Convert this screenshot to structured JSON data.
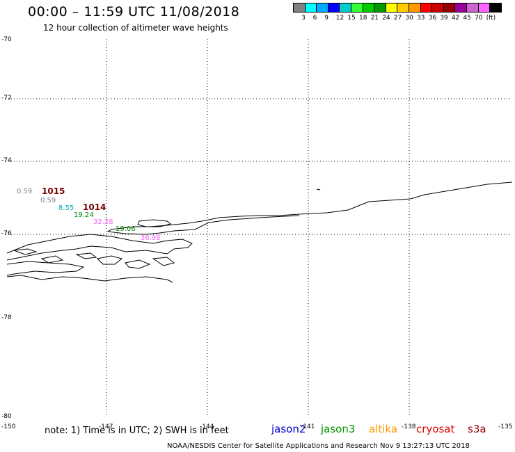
{
  "header": {
    "title": "00:00 – 11:59 UTC 11/08/2018",
    "subtitle": "12 hour collection of altimeter wave heights"
  },
  "colorbar": {
    "colors": [
      "#808080",
      "#00ffff",
      "#00aaff",
      "#0000ff",
      "#00cccc",
      "#33ff33",
      "#00cc00",
      "#009900",
      "#ffff00",
      "#ffcc00",
      "#ff9900",
      "#ff0000",
      "#cc0000",
      "#990000",
      "#990099",
      "#cc66cc",
      "#ff66ff",
      "#000000"
    ],
    "labels": [
      "3",
      "6",
      "9",
      "12",
      "15",
      "18",
      "21",
      "24",
      "27",
      "30",
      "33",
      "36",
      "39",
      "42",
      "45",
      "70",
      "(ft)"
    ]
  },
  "axes": {
    "y_labels": [
      "-70",
      "-72",
      "-74",
      "-76",
      "-78",
      "-80"
    ],
    "x_labels": [
      "-150",
      "-147",
      "-144",
      "-141",
      "-138",
      "-135"
    ]
  },
  "observations": [
    {
      "text": "0.59",
      "color": "#808080"
    },
    {
      "text": "0.59",
      "color": "#808080"
    },
    {
      "text": "8.55",
      "color": "#00aaaa"
    },
    {
      "text": "19.24",
      "color": "#008800"
    },
    {
      "text": "32.28",
      "color": "#ff66ff"
    },
    {
      "text": "19.06",
      "color": "#008800"
    },
    {
      "text": "36.98",
      "color": "#ff66ff"
    }
  ],
  "pressure_labels": [
    "1015",
    "1014"
  ],
  "footer": {
    "note": "note: 1) Time is in UTC; 2) SWH is in feet",
    "legend": [
      {
        "name": "jason2",
        "color": "#0000cc"
      },
      {
        "name": "jason3",
        "color": "#009900"
      },
      {
        "name": "altika",
        "color": "#ff9900"
      },
      {
        "name": "cryosat",
        "color": "#dd0000"
      },
      {
        "name": "s3a",
        "color": "#990000"
      }
    ],
    "credit": "NOAA/NESDIS Center for Satellite Applications and Research   Nov  9 13:27:13 UTC 2018"
  }
}
